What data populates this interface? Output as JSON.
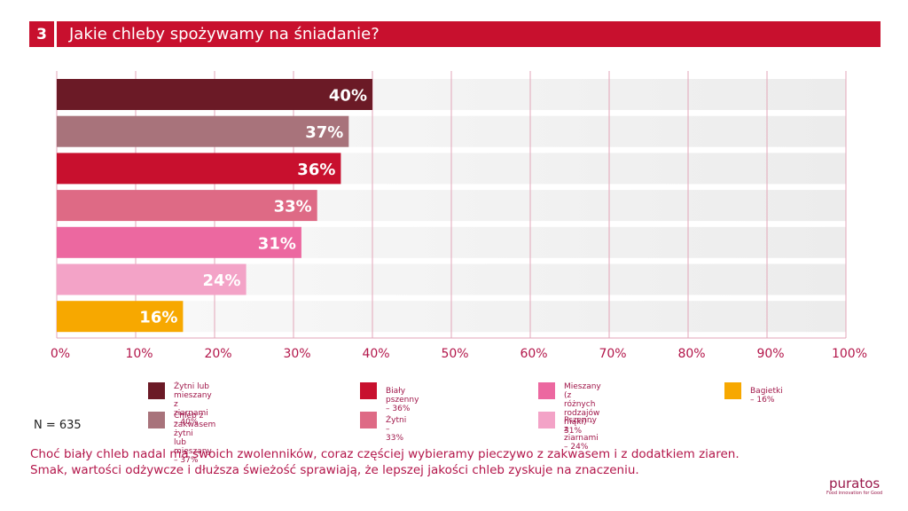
{
  "header": {
    "number": "3",
    "title": "Jakie chleby spożywamy na śniadanie?"
  },
  "chart_data": {
    "type": "bar",
    "orientation": "horizontal",
    "title": "Jakie chleby spożywamy na śniadanie?",
    "categories": [
      "Żytni lub mieszany z ziarnami",
      "Chleb z zakwasem żytni lub mieszany",
      "Biały pszenny",
      "Żytni",
      "Mieszany (z różnych rodzajów mąki)",
      "Pszenny z ziarnami",
      "Bagietki"
    ],
    "values": [
      40,
      37,
      36,
      33,
      31,
      24,
      16
    ],
    "value_labels": [
      "40%",
      "37%",
      "36%",
      "33%",
      "31%",
      "24%",
      "16%"
    ],
    "colors": [
      "#6b1a26",
      "#a8737b",
      "#c8102e",
      "#de6a85",
      "#ec68a0",
      "#f3a3c7",
      "#f7a800"
    ],
    "xlim": [
      0,
      100
    ],
    "xticks": [
      "0%",
      "10%",
      "20%",
      "30%",
      "40%",
      "50%",
      "60%",
      "70%",
      "80%",
      "90%",
      "100%"
    ],
    "xlabel": "",
    "ylabel": "",
    "grid": true,
    "legend_position": "bottom",
    "legend": [
      {
        "label": "Żytni lub mieszany\nz ziarnami – 40%",
        "color": "#6b1a26"
      },
      {
        "label": "Chleb z zakwasem żytni\nlub mieszany – 37%",
        "color": "#a8737b"
      },
      {
        "label": "Biały pszenny – 36%",
        "color": "#c8102e"
      },
      {
        "label": "Żytni – 33%",
        "color": "#de6a85"
      },
      {
        "label": "Mieszany (z różnych\nrodzajów mąki) – 31%",
        "color": "#ec68a0"
      },
      {
        "label": "Pszenny z ziarnami – 24%",
        "color": "#f3a3c7"
      },
      {
        "label": "Bagietki – 16%",
        "color": "#f7a800"
      }
    ]
  },
  "sample": "N = 635",
  "note": {
    "line1": "Choć biały chleb nadal ma swoich zwolenników, coraz częściej wybieramy pieczywo z zakwasem i z dodatkiem ziaren.",
    "line2": "Smak, wartości odżywcze i dłuższa świeżość sprawiają, że lepszej jakości chleb zyskuje na znaczeniu."
  },
  "logo": {
    "brand": "puratos",
    "tagline": "Food innovation for Good"
  }
}
